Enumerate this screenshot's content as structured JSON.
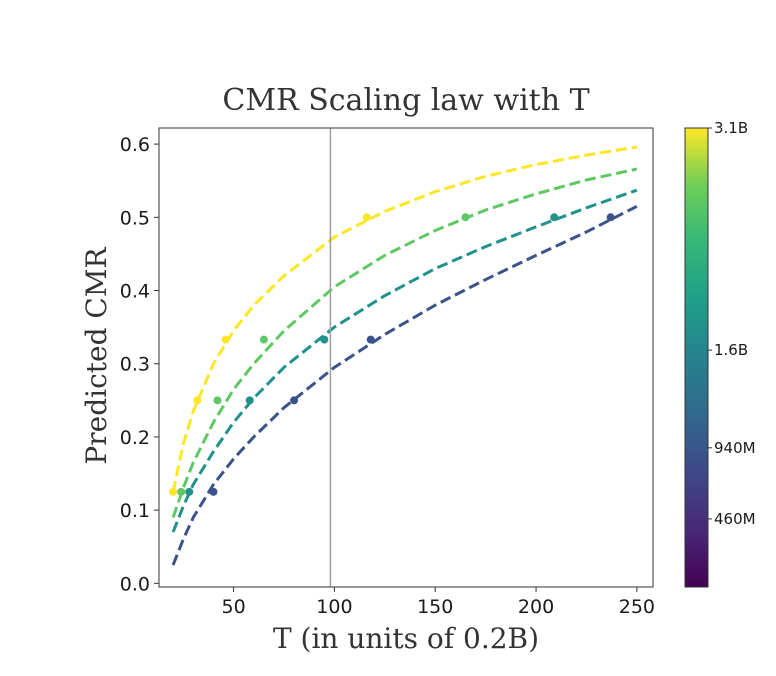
{
  "chart_data": {
    "type": "scatter",
    "title": "CMR Scaling law with T",
    "xlabel": "T (in units of 0.2B)",
    "ylabel": "Predicted CMR",
    "xlim": [
      13,
      258
    ],
    "ylim": [
      -0.005,
      0.622
    ],
    "x_ticks": [
      50,
      100,
      150,
      200,
      250
    ],
    "y_ticks": [
      0.0,
      0.1,
      0.2,
      0.3,
      0.4,
      0.5,
      0.6
    ],
    "x_tick_labels": [
      "50",
      "100",
      "150",
      "200",
      "250"
    ],
    "y_tick_labels": [
      "0.0",
      "0.1",
      "0.2",
      "0.3",
      "0.4",
      "0.5",
      "0.6"
    ],
    "grid": false,
    "vertical_line_x": 98,
    "colorbar": {
      "colormap": "viridis",
      "range": [
        0,
        3.1
      ],
      "ticks": [
        {
          "label": "3.1B",
          "value": 3.1
        },
        {
          "label": "1.6B",
          "value": 1.6
        },
        {
          "label": "940M",
          "value": 0.94
        },
        {
          "label": "460M",
          "value": 0.46
        }
      ]
    },
    "series": [
      {
        "color": "#fde725",
        "points": {
          "x": [
            20,
            32,
            46,
            116
          ],
          "y": [
            0.125,
            0.25,
            0.333,
            0.5
          ]
        },
        "fit": {
          "x": [
            20,
            25,
            30,
            40,
            50,
            60,
            75,
            100,
            125,
            150,
            175,
            200,
            225,
            250
          ],
          "y": [
            0.125,
            0.19,
            0.235,
            0.3,
            0.345,
            0.38,
            0.42,
            0.473,
            0.508,
            0.535,
            0.556,
            0.572,
            0.585,
            0.596
          ]
        }
      },
      {
        "color": "#5ec962",
        "points": {
          "x": [
            24,
            42,
            65,
            165
          ],
          "y": [
            0.125,
            0.25,
            0.333,
            0.5
          ]
        },
        "fit": {
          "x": [
            20,
            25,
            30,
            40,
            50,
            60,
            75,
            100,
            125,
            150,
            175,
            200,
            225,
            250
          ],
          "y": [
            0.09,
            0.13,
            0.165,
            0.22,
            0.265,
            0.3,
            0.345,
            0.405,
            0.448,
            0.482,
            0.51,
            0.532,
            0.551,
            0.566
          ]
        }
      },
      {
        "color": "#21918c",
        "points": {
          "x": [
            28,
            58,
            95,
            209
          ],
          "y": [
            0.125,
            0.25,
            0.333,
            0.5
          ]
        },
        "fit": {
          "x": [
            20,
            25,
            30,
            40,
            50,
            60,
            75,
            100,
            125,
            150,
            175,
            200,
            225,
            250
          ],
          "y": [
            0.07,
            0.105,
            0.135,
            0.18,
            0.22,
            0.253,
            0.295,
            0.35,
            0.393,
            0.43,
            0.46,
            0.487,
            0.513,
            0.537
          ]
        }
      },
      {
        "color": "#3b528b",
        "points": {
          "x": [
            40,
            80,
            118,
            237
          ],
          "y": [
            0.125,
            0.25,
            0.333,
            0.5
          ]
        },
        "fit": {
          "x": [
            20,
            25,
            30,
            40,
            50,
            60,
            75,
            100,
            125,
            150,
            175,
            200,
            225,
            250
          ],
          "y": [
            0.025,
            0.06,
            0.09,
            0.135,
            0.17,
            0.2,
            0.24,
            0.295,
            0.34,
            0.38,
            0.415,
            0.448,
            0.48,
            0.515
          ]
        }
      }
    ]
  }
}
